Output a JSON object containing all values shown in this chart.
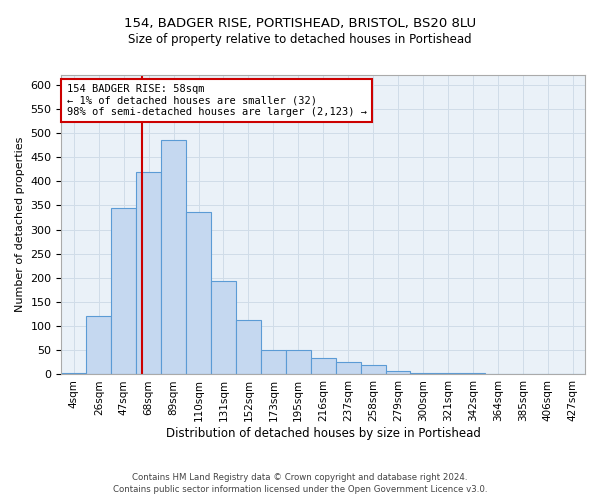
{
  "title1": "154, BADGER RISE, PORTISHEAD, BRISTOL, BS20 8LU",
  "title2": "Size of property relative to detached houses in Portishead",
  "xlabel": "Distribution of detached houses by size in Portishead",
  "ylabel": "Number of detached properties",
  "bar_labels": [
    "4sqm",
    "26sqm",
    "47sqm",
    "68sqm",
    "89sqm",
    "110sqm",
    "131sqm",
    "152sqm",
    "173sqm",
    "195sqm",
    "216sqm",
    "237sqm",
    "258sqm",
    "279sqm",
    "300sqm",
    "321sqm",
    "342sqm",
    "364sqm",
    "385sqm",
    "406sqm",
    "427sqm"
  ],
  "bar_values": [
    4,
    120,
    345,
    420,
    485,
    337,
    193,
    112,
    50,
    50,
    35,
    25,
    20,
    8,
    3,
    2,
    2,
    1,
    1,
    1,
    1
  ],
  "bar_color": "#c5d8f0",
  "bar_edge_color": "#5b9bd5",
  "property_line_x": 2.72,
  "property_line_color": "#cc0000",
  "annotation_text": "154 BADGER RISE: 58sqm\n← 1% of detached houses are smaller (32)\n98% of semi-detached houses are larger (2,123) →",
  "annotation_box_color": "#cc0000",
  "ylim": [
    0,
    620
  ],
  "yticks": [
    0,
    50,
    100,
    150,
    200,
    250,
    300,
    350,
    400,
    450,
    500,
    550,
    600
  ],
  "footer1": "Contains HM Land Registry data © Crown copyright and database right 2024.",
  "footer2": "Contains public sector information licensed under the Open Government Licence v3.0.",
  "grid_color": "#d0dce8",
  "background_color": "#eaf1f8"
}
